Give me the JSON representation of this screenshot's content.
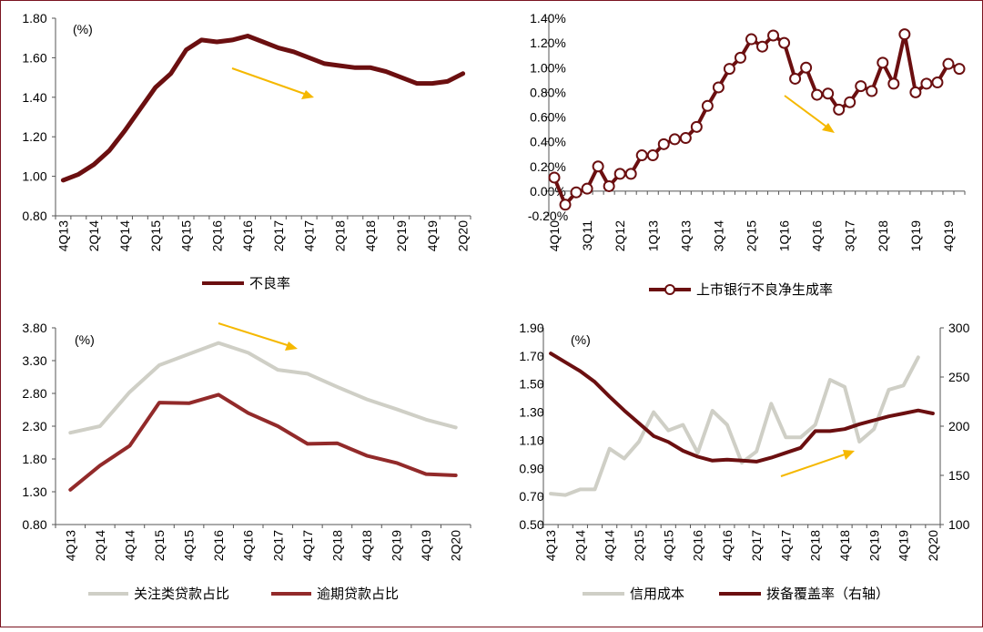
{
  "colors": {
    "dark_red": "#6b0f10",
    "mid_red": "#922a2a",
    "light_gray": "#cfcfc6",
    "arrow": "#f5b800",
    "border": "#7a1420"
  },
  "chart_data": [
    {
      "id": "npl",
      "type": "line",
      "unit": "(%)",
      "categories": [
        "4Q13",
        "1Q14",
        "2Q14",
        "3Q14",
        "4Q14",
        "1Q15",
        "2Q15",
        "3Q15",
        "4Q15",
        "1Q16",
        "2Q16",
        "3Q16",
        "4Q16",
        "1Q17",
        "2Q17",
        "3Q17",
        "4Q17",
        "1Q18",
        "2Q18",
        "3Q18",
        "4Q18",
        "1Q19",
        "2Q19",
        "3Q19",
        "4Q19",
        "1Q20",
        "2Q20"
      ],
      "tick_labels": [
        "4Q13",
        "2Q14",
        "4Q14",
        "2Q15",
        "4Q15",
        "2Q16",
        "4Q16",
        "2Q17",
        "4Q17",
        "2Q18",
        "4Q18",
        "2Q19",
        "4Q19",
        "2Q20"
      ],
      "ylim": [
        0.8,
        1.8
      ],
      "yticks": [
        "0.80",
        "1.00",
        "1.20",
        "1.40",
        "1.60",
        "1.80"
      ],
      "series": [
        {
          "name": "不良率",
          "color": "#6b0f10",
          "values": [
            0.98,
            1.01,
            1.06,
            1.13,
            1.23,
            1.34,
            1.45,
            1.52,
            1.64,
            1.69,
            1.68,
            1.69,
            1.71,
            1.68,
            1.65,
            1.63,
            1.6,
            1.57,
            1.56,
            1.55,
            1.55,
            1.53,
            1.5,
            1.47,
            1.47,
            1.48,
            1.52
          ]
        }
      ]
    },
    {
      "id": "net_npl_formation",
      "type": "line",
      "categories": [
        "4Q10",
        "1Q11",
        "2Q11",
        "3Q11",
        "4Q11",
        "1Q12",
        "2Q12",
        "3Q12",
        "4Q12",
        "1Q13",
        "2Q13",
        "3Q13",
        "4Q13",
        "1Q14",
        "2Q14",
        "3Q14",
        "4Q14",
        "1Q15",
        "2Q15",
        "3Q15",
        "4Q15",
        "1Q16",
        "2Q16",
        "3Q16",
        "4Q16",
        "1Q17",
        "2Q17",
        "3Q17",
        "4Q17",
        "1Q18",
        "2Q18",
        "3Q18",
        "4Q18",
        "1Q19",
        "2Q19",
        "3Q19",
        "4Q19",
        "1Q20"
      ],
      "tick_labels": [
        "4Q10",
        "3Q11",
        "2Q12",
        "1Q13",
        "4Q13",
        "3Q14",
        "2Q15",
        "1Q16",
        "4Q16",
        "3Q17",
        "2Q18",
        "1Q19",
        "4Q19"
      ],
      "ylim": [
        -0.2,
        1.4
      ],
      "yticks": [
        "-0.20%",
        "0.00%",
        "0.20%",
        "0.40%",
        "0.60%",
        "0.80%",
        "1.00%",
        "1.20%",
        "1.40%"
      ],
      "series": [
        {
          "name": "上市银行不良净生成率",
          "color": "#6b0f10",
          "values": [
            0.11,
            -0.11,
            -0.01,
            0.02,
            0.2,
            0.04,
            0.14,
            0.14,
            0.29,
            0.29,
            0.38,
            0.42,
            0.43,
            0.52,
            0.69,
            0.84,
            0.99,
            1.08,
            1.23,
            1.17,
            1.26,
            1.2,
            0.91,
            1.0,
            0.78,
            0.79,
            0.66,
            0.72,
            0.85,
            0.81,
            1.04,
            0.87,
            1.27,
            0.8,
            0.87,
            0.88,
            1.03,
            0.99
          ]
        }
      ]
    },
    {
      "id": "special_overdue",
      "type": "line",
      "unit": "(%)",
      "categories": [
        "4Q13",
        "2Q14",
        "4Q14",
        "2Q15",
        "4Q15",
        "2Q16",
        "4Q16",
        "2Q17",
        "4Q17",
        "2Q18",
        "4Q18",
        "2Q19",
        "4Q19",
        "2Q20"
      ],
      "tick_labels": [
        "4Q13",
        "2Q14",
        "4Q14",
        "2Q15",
        "4Q15",
        "2Q16",
        "4Q16",
        "2Q17",
        "4Q17",
        "2Q18",
        "4Q18",
        "2Q19",
        "4Q19",
        "2Q20"
      ],
      "ylim": [
        0.8,
        3.8
      ],
      "yticks": [
        "0.80",
        "1.30",
        "1.80",
        "2.30",
        "2.80",
        "3.30",
        "3.80"
      ],
      "series": [
        {
          "name": "关注类贷款占比",
          "color": "#cfcfc6",
          "values": [
            2.2,
            2.3,
            2.82,
            3.23,
            3.4,
            3.57,
            3.42,
            3.16,
            3.1,
            2.9,
            2.71,
            2.56,
            2.4,
            2.28
          ]
        },
        {
          "name": "逾期贷款占比",
          "color": "#922a2a",
          "values": [
            1.33,
            1.7,
            2.0,
            2.66,
            2.65,
            2.78,
            2.5,
            2.3,
            2.03,
            2.04,
            1.85,
            1.74,
            1.57,
            1.55
          ]
        }
      ]
    },
    {
      "id": "credit_cost_coverage",
      "type": "line",
      "unit": "(%)",
      "categories": [
        "4Q13",
        "1Q14",
        "2Q14",
        "3Q14",
        "4Q14",
        "1Q15",
        "2Q15",
        "3Q15",
        "4Q15",
        "1Q16",
        "2Q16",
        "3Q16",
        "4Q16",
        "1Q17",
        "2Q17",
        "3Q17",
        "4Q17",
        "1Q18",
        "2Q18",
        "3Q18",
        "4Q18",
        "1Q19",
        "2Q19",
        "3Q19",
        "4Q19",
        "1Q20",
        "2Q20"
      ],
      "tick_labels": [
        "4Q13",
        "2Q14",
        "4Q14",
        "2Q15",
        "4Q15",
        "2Q16",
        "4Q16",
        "2Q17",
        "4Q17",
        "2Q18",
        "4Q18",
        "2Q19",
        "4Q19",
        "2Q20"
      ],
      "ylim": [
        0.5,
        1.9
      ],
      "yticks": [
        "0.50",
        "0.70",
        "0.90",
        "1.10",
        "1.30",
        "1.50",
        "1.70",
        "1.90"
      ],
      "y2lim": [
        100,
        300
      ],
      "y2ticks": [
        "100",
        "150",
        "200",
        "250",
        "300"
      ],
      "series": [
        {
          "name": "信用成本",
          "axis": "left",
          "color": "#cfcfc6",
          "values": [
            0.72,
            0.71,
            0.75,
            0.75,
            1.04,
            0.97,
            1.09,
            1.3,
            1.17,
            1.21,
            1.01,
            1.31,
            1.21,
            0.94,
            1.02,
            1.36,
            1.12,
            1.12,
            1.21,
            1.53,
            1.48,
            1.09,
            1.18,
            1.46,
            1.49,
            1.69,
            null
          ]
        },
        {
          "name": "拨备覆盖率（右轴）",
          "axis": "right",
          "color": "#6b0f10",
          "values": [
            274,
            265,
            256,
            245,
            230,
            216,
            203,
            190,
            184,
            175,
            169,
            165,
            166,
            165,
            164,
            168,
            173,
            178,
            195,
            195,
            197,
            202,
            206,
            210,
            213,
            216,
            213
          ]
        }
      ]
    }
  ]
}
